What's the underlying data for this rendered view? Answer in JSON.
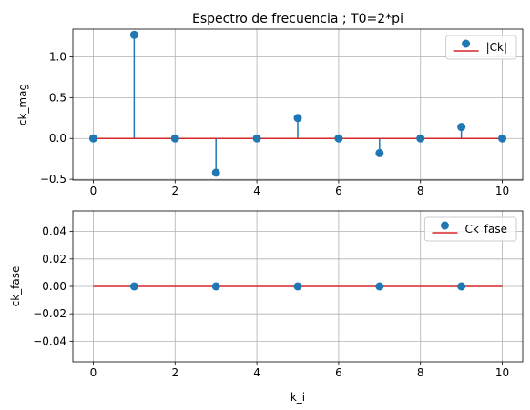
{
  "colors": {
    "stem": "#1f77b4",
    "baseline": "#d62728",
    "grid": "#b0b0b0",
    "axes": "#000000",
    "legend_edge": "#cccccc"
  },
  "chart_data": [
    {
      "type": "stem",
      "title": "Espectro de frecuencia ; T0=2*pi",
      "xlabel": "",
      "ylabel": "ck_mag",
      "xlim": [
        -0.5,
        10.5
      ],
      "ylim": [
        -0.51,
        1.34
      ],
      "xticks": [
        "0",
        "2",
        "4",
        "6",
        "8",
        "10"
      ],
      "yticks": [
        "−0.5",
        "0.0",
        "0.5",
        "1.0"
      ],
      "grid": true,
      "legend": {
        "placement": "top-right",
        "label": "|Ck|"
      },
      "baseline": 0,
      "series": [
        {
          "name": "|Ck|",
          "x": [
            0,
            1,
            2,
            3,
            4,
            5,
            6,
            7,
            8,
            9,
            10
          ],
          "y": [
            0.0,
            1.27,
            0.0,
            -0.42,
            0.0,
            0.25,
            0.0,
            -0.18,
            0.0,
            0.14,
            0.0
          ]
        }
      ]
    },
    {
      "type": "stem",
      "title": "",
      "xlabel": "k_i",
      "ylabel": "ck_fase",
      "xlim": [
        -0.5,
        10.5
      ],
      "ylim": [
        -0.055,
        0.055
      ],
      "xticks": [
        "0",
        "2",
        "4",
        "6",
        "8",
        "10"
      ],
      "yticks": [
        "−0.04",
        "−0.02",
        "0.00",
        "0.02",
        "0.04"
      ],
      "grid": true,
      "legend": {
        "placement": "top-right",
        "label": "Ck_fase"
      },
      "baseline": 0,
      "baseline_x": [
        0,
        10
      ],
      "series": [
        {
          "name": "Ck_fase",
          "x": [
            1,
            3,
            5,
            7,
            9
          ],
          "y": [
            0.0,
            0.0,
            0.0,
            0.0,
            0.0
          ]
        }
      ]
    }
  ]
}
